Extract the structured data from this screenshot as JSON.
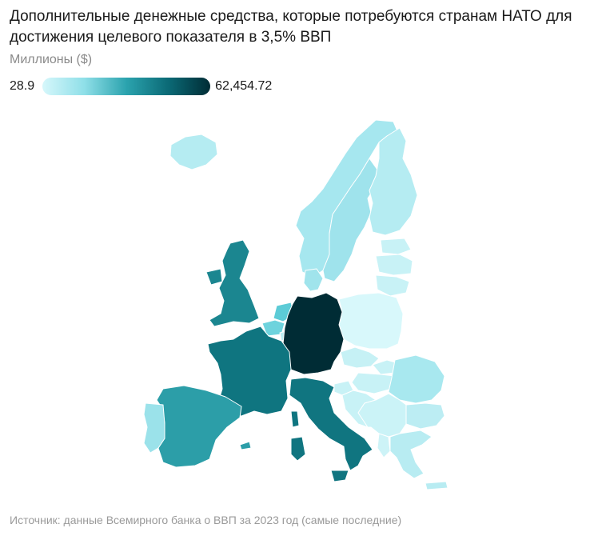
{
  "title": "Дополнительные денежные средства, которые потребуются странам НАТО для достижения целевого показателя в 3,5% ВВП",
  "subtitle": "Миллионы ($)",
  "legend": {
    "min": "28.9",
    "max": "62,454.72",
    "gradient_colors": [
      "#d6f7fb",
      "#8fdfe8",
      "#2ba3ae",
      "#0b6a76",
      "#002c35"
    ]
  },
  "source": "Источник: данные Всемирного банка о ВВП за 2023 год (самые последние)",
  "countries": [
    {
      "id": "iceland",
      "color": "#b5ecf2"
    },
    {
      "id": "norway",
      "color": "#a6e7ef"
    },
    {
      "id": "sweden",
      "color": "#9fe3ec"
    },
    {
      "id": "finland",
      "color": "#b5ecf2"
    },
    {
      "id": "denmark",
      "color": "#a0e4ec"
    },
    {
      "id": "estonia",
      "color": "#c8f2f6"
    },
    {
      "id": "latvia",
      "color": "#c8f2f6"
    },
    {
      "id": "lithuania",
      "color": "#c8f2f6"
    },
    {
      "id": "poland",
      "color": "#d8f8fb"
    },
    {
      "id": "uk",
      "color": "#1b8690"
    },
    {
      "id": "netherlands",
      "color": "#5ccbd6"
    },
    {
      "id": "belgium",
      "color": "#6ed3dd"
    },
    {
      "id": "luxembourg",
      "color": "#bdeff4"
    },
    {
      "id": "germany",
      "color": "#002c35"
    },
    {
      "id": "france",
      "color": "#0f7580"
    },
    {
      "id": "spain",
      "color": "#2c9ea8"
    },
    {
      "id": "portugal",
      "color": "#9be2ea"
    },
    {
      "id": "italy",
      "color": "#107580"
    },
    {
      "id": "czechia",
      "color": "#c6f1f5"
    },
    {
      "id": "slovakia",
      "color": "#c8f2f6"
    },
    {
      "id": "hungary",
      "color": "#c8f2f6"
    },
    {
      "id": "slovenia",
      "color": "#c8f2f6"
    },
    {
      "id": "croatia",
      "color": "#c8f2f6"
    },
    {
      "id": "romania",
      "color": "#a8e8ef"
    },
    {
      "id": "bulgaria",
      "color": "#bcedf3"
    },
    {
      "id": "balkans",
      "color": "#cbf3f7"
    },
    {
      "id": "greece",
      "color": "#b8ecf2"
    },
    {
      "id": "albania",
      "color": "#cdf3f7"
    }
  ]
}
